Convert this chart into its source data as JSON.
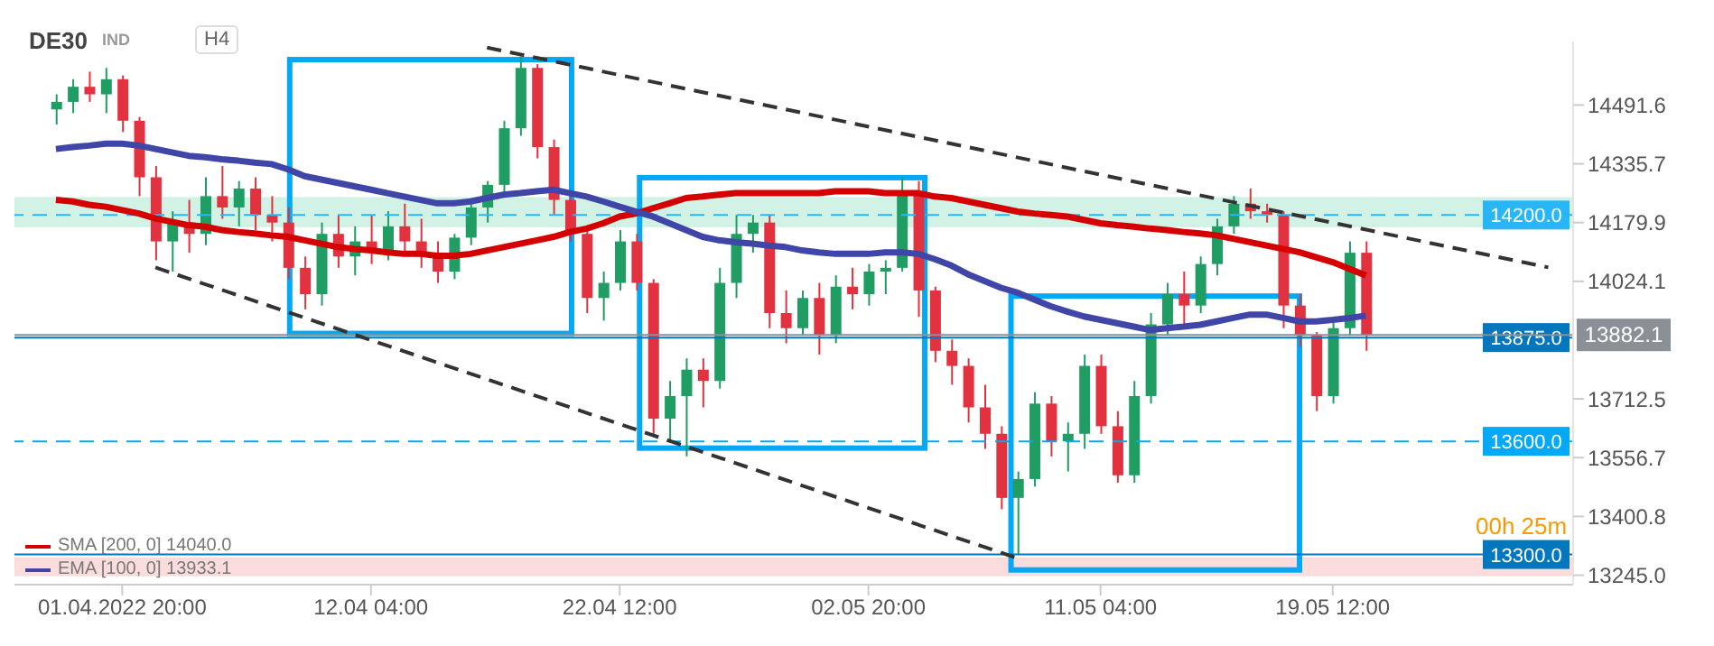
{
  "chart_data": {
    "type": "candlestick",
    "title": "DE30",
    "subtitle": "IND",
    "annotations": [
      "H4",
      "00h 25m"
    ],
    "categories": [
      null,
      null,
      null,
      null,
      "01.04.2022 20:00",
      null,
      null,
      null,
      null,
      null,
      null,
      null,
      null,
      null,
      null,
      null,
      null,
      null,
      null,
      "12.04 04:00",
      null,
      null,
      null,
      null,
      null,
      null,
      null,
      null,
      null,
      null,
      null,
      null,
      null,
      null,
      "22.04 12:00",
      null,
      null,
      null,
      null,
      null,
      null,
      null,
      null,
      null,
      null,
      null,
      null,
      null,
      null,
      "02.05 20:00",
      null,
      null,
      null,
      null,
      null,
      null,
      null,
      null,
      null,
      null,
      null,
      null,
      null,
      "11.05 04:00",
      null,
      null,
      null,
      null,
      null,
      null,
      null,
      null,
      null,
      null,
      null,
      null,
      null,
      "19.05 12:00",
      null,
      null,
      null,
      null,
      null,
      null,
      null,
      null,
      null,
      null,
      null,
      null,
      null,
      null
    ],
    "ohlc": [
      [
        14480,
        14520,
        14440,
        14500
      ],
      [
        14500,
        14560,
        14470,
        14540
      ],
      [
        14540,
        14580,
        14500,
        14520
      ],
      [
        14520,
        14590,
        14470,
        14560
      ],
      [
        14560,
        14570,
        14420,
        14450
      ],
      [
        14450,
        14460,
        14250,
        14300
      ],
      [
        14300,
        14330,
        14080,
        14130
      ],
      [
        14130,
        14210,
        14050,
        14180
      ],
      [
        14180,
        14240,
        14100,
        14150
      ],
      [
        14150,
        14300,
        14120,
        14250
      ],
      [
        14250,
        14330,
        14190,
        14220
      ],
      [
        14220,
        14290,
        14170,
        14270
      ],
      [
        14270,
        14300,
        14160,
        14200
      ],
      [
        14200,
        14250,
        14130,
        14180
      ],
      [
        14180,
        14220,
        14030,
        14060
      ],
      [
        14060,
        14090,
        13950,
        13990
      ],
      [
        13990,
        14180,
        13960,
        14150
      ],
      [
        14150,
        14200,
        14060,
        14090
      ],
      [
        14090,
        14170,
        14040,
        14130
      ],
      [
        14130,
        14200,
        14070,
        14100
      ],
      [
        14100,
        14210,
        14080,
        14170
      ],
      [
        14170,
        14230,
        14100,
        14130
      ],
      [
        14130,
        14190,
        14060,
        14090
      ],
      [
        14090,
        14130,
        14020,
        14050
      ],
      [
        14050,
        14150,
        14030,
        14140
      ],
      [
        14140,
        14240,
        14120,
        14220
      ],
      [
        14220,
        14290,
        14180,
        14280
      ],
      [
        14280,
        14450,
        14260,
        14430
      ],
      [
        14430,
        14620,
        14410,
        14590
      ],
      [
        14590,
        14600,
        14350,
        14380
      ],
      [
        14380,
        14400,
        14200,
        14240
      ],
      [
        14240,
        14260,
        14130,
        14150
      ],
      [
        14150,
        14160,
        13940,
        13980
      ],
      [
        13980,
        14050,
        13920,
        14020
      ],
      [
        14020,
        14160,
        14000,
        14130
      ],
      [
        14130,
        14150,
        14000,
        14020
      ],
      [
        14020,
        14030,
        13620,
        13660
      ],
      [
        13660,
        13760,
        13600,
        13720
      ],
      [
        13720,
        13820,
        13560,
        13790
      ],
      [
        13790,
        13820,
        13690,
        13760
      ],
      [
        13760,
        14060,
        13740,
        14020
      ],
      [
        14020,
        14200,
        13980,
        14150
      ],
      [
        14150,
        14200,
        14100,
        14180
      ],
      [
        14180,
        14200,
        13900,
        13940
      ],
      [
        13940,
        14000,
        13860,
        13900
      ],
      [
        13900,
        14000,
        13880,
        13980
      ],
      [
        13980,
        14020,
        13830,
        13880
      ],
      [
        13880,
        14040,
        13860,
        14010
      ],
      [
        14010,
        14060,
        13950,
        13990
      ],
      [
        13990,
        14070,
        13960,
        14050
      ],
      [
        14050,
        14080,
        13990,
        14060
      ],
      [
        14060,
        14300,
        14050,
        14260
      ],
      [
        14260,
        14290,
        13930,
        14000
      ],
      [
        14000,
        14010,
        13810,
        13840
      ],
      [
        13840,
        13870,
        13750,
        13800
      ],
      [
        13800,
        13820,
        13650,
        13690
      ],
      [
        13690,
        13750,
        13580,
        13620
      ],
      [
        13620,
        13640,
        13420,
        13450
      ],
      [
        13450,
        13520,
        13300,
        13500
      ],
      [
        13500,
        13730,
        13480,
        13700
      ],
      [
        13700,
        13720,
        13560,
        13600
      ],
      [
        13600,
        13650,
        13520,
        13620
      ],
      [
        13620,
        13830,
        13580,
        13800
      ],
      [
        13800,
        13830,
        13620,
        13640
      ],
      [
        13640,
        13680,
        13490,
        13510
      ],
      [
        13510,
        13760,
        13490,
        13720
      ],
      [
        13720,
        13940,
        13700,
        13910
      ],
      [
        13910,
        14020,
        13880,
        13990
      ],
      [
        13990,
        14050,
        13900,
        13960
      ],
      [
        13960,
        14090,
        13940,
        14070
      ],
      [
        14070,
        14190,
        14040,
        14170
      ],
      [
        14170,
        14250,
        14150,
        14230
      ],
      [
        14230,
        14270,
        14190,
        14210
      ],
      [
        14210,
        14230,
        14180,
        14200
      ],
      [
        14200,
        14210,
        13900,
        13960
      ],
      [
        13960,
        13990,
        13850,
        13880
      ],
      [
        13880,
        13890,
        13680,
        13720
      ],
      [
        13720,
        13930,
        13700,
        13900
      ],
      [
        13900,
        14130,
        13880,
        14100
      ],
      [
        14100,
        14130,
        13840,
        13882.1
      ],
      null,
      null,
      null,
      null,
      null,
      null,
      null,
      null,
      null,
      null,
      null,
      null
    ],
    "series": [
      {
        "name": "SMA [200, 0] 14040.0",
        "type": "line",
        "color": "#d50000",
        "values": [
          14240,
          14236,
          14227,
          14222,
          14213,
          14204,
          14191,
          14182,
          14173,
          14169,
          14160,
          14155,
          14151,
          14146,
          14142,
          14133,
          14124,
          14115,
          14110,
          14106,
          14101,
          14097,
          14097,
          14092,
          14092,
          14097,
          14106,
          14115,
          14124,
          14133,
          14142,
          14155,
          14164,
          14178,
          14196,
          14204,
          14218,
          14231,
          14245,
          14249,
          14254,
          14258,
          14258,
          14258,
          14258,
          14258,
          14258,
          14263,
          14263,
          14263,
          14258,
          14258,
          14258,
          14249,
          14245,
          14236,
          14227,
          14218,
          14209,
          14204,
          14200,
          14196,
          14187,
          14178,
          14173,
          14169,
          14164,
          14160,
          14155,
          14151,
          14146,
          14137,
          14128,
          14119,
          14110,
          14101,
          14088,
          14075,
          14057,
          14040,
          null,
          null,
          null,
          null,
          null,
          null,
          null,
          null,
          null,
          null,
          null,
          null
        ]
      },
      {
        "name": "EMA [100, 0] 13933.1",
        "type": "line",
        "color": "#3f46a8",
        "values": [
          14375,
          14380,
          14384,
          14389,
          14389,
          14384,
          14375,
          14366,
          14357,
          14353,
          14348,
          14344,
          14339,
          14335,
          14321,
          14303,
          14294,
          14285,
          14276,
          14267,
          14258,
          14249,
          14240,
          14231,
          14231,
          14236,
          14245,
          14254,
          14258,
          14263,
          14267,
          14258,
          14249,
          14236,
          14222,
          14209,
          14196,
          14178,
          14160,
          14142,
          14133,
          14128,
          14124,
          14119,
          14115,
          14106,
          14101,
          14097,
          14097,
          14097,
          14101,
          14101,
          14097,
          14083,
          14066,
          14043,
          14025,
          14007,
          13994,
          13976,
          13958,
          13944,
          13931,
          13922,
          13913,
          13904,
          13895,
          13900,
          13904,
          13909,
          13918,
          13927,
          13936,
          13936,
          13927,
          13918,
          13918,
          13922,
          13927,
          13933.1,
          null,
          null,
          null,
          null,
          null,
          null,
          null,
          null,
          null,
          null,
          null,
          null
        ]
      },
      {
        "type": "line",
        "color": "#333333",
        "line_style": "dashed",
        "values": [
          null,
          null,
          null,
          null,
          null,
          null,
          null,
          null,
          null,
          null,
          null,
          null,
          null,
          null,
          null,
          null,
          null,
          null,
          null,
          null,
          null,
          null,
          null,
          null,
          null,
          null,
          14644,
          null,
          null,
          null,
          null,
          null,
          null,
          null,
          null,
          null,
          null,
          null,
          null,
          null,
          null,
          null,
          null,
          null,
          null,
          null,
          null,
          null,
          null,
          null,
          null,
          null,
          null,
          null,
          null,
          null,
          null,
          null,
          null,
          null,
          null,
          null,
          null,
          null,
          null,
          null,
          null,
          null,
          null,
          null,
          null,
          null,
          null,
          null,
          null,
          null,
          null,
          null,
          null,
          null,
          null,
          null,
          null,
          null,
          null,
          null,
          null,
          null,
          null,
          null,
          14061,
          null
        ]
      },
      {
        "type": "line",
        "color": "#333333",
        "line_style": "dashed",
        "values": [
          null,
          null,
          null,
          null,
          null,
          null,
          14061,
          null,
          null,
          null,
          null,
          null,
          null,
          null,
          null,
          null,
          null,
          null,
          null,
          null,
          null,
          null,
          null,
          null,
          null,
          null,
          null,
          null,
          null,
          null,
          null,
          null,
          null,
          null,
          null,
          null,
          null,
          null,
          null,
          null,
          null,
          null,
          null,
          null,
          null,
          null,
          null,
          null,
          null,
          null,
          null,
          null,
          null,
          null,
          null,
          null,
          null,
          null,
          13290,
          null,
          null,
          null,
          null,
          null,
          null,
          null,
          null,
          null,
          null,
          null,
          null,
          null,
          null,
          null,
          null,
          null,
          null,
          null,
          null,
          null,
          null,
          null,
          null,
          null,
          null,
          null,
          null,
          null,
          null,
          null,
          null,
          null
        ]
      }
    ],
    "ylim": [
      13220,
      14660
    ],
    "yticks": [
      14491.6,
      14335.7,
      14179.9,
      14024.1,
      13712.5,
      13556.7,
      13400.8,
      {
        "value": 13245,
        "label": "13245.0"
      }
    ],
    "ref_lines": [
      {
        "axis": "y",
        "value": 14200,
        "label": "14200.0",
        "color": "#29b6f6",
        "line_style": "dashed"
      },
      {
        "axis": "y",
        "value": 13875,
        "label": "13875.0",
        "color": "#0277bd",
        "line_style": "solid"
      },
      {
        "axis": "y",
        "value": 13600,
        "label": "13600.0",
        "color": "#03a9f4",
        "line_style": "dashed"
      },
      {
        "axis": "y",
        "value": 13300,
        "label": "13300.0",
        "color": "#0277bd",
        "line_style": "solid"
      },
      {
        "axis": "y",
        "value": 13882.1,
        "label": "13882.1",
        "color": "#8a9096",
        "line_style": "solid"
      }
    ],
    "bands": [
      {
        "axis": "y",
        "from": 14170,
        "to": 14245,
        "color": "#cdf1e3"
      },
      {
        "axis": "y",
        "from": 13245,
        "to": 13290,
        "color": "#fcd9d9"
      }
    ],
    "legend": "bottom left",
    "marker": "none"
  }
}
